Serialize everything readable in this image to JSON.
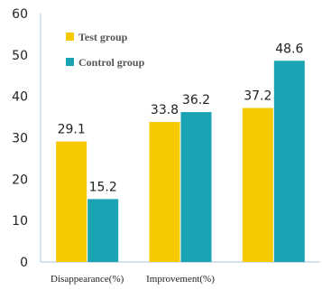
{
  "chart_data": {
    "type": "bar",
    "title": "",
    "xlabel": "",
    "ylabel": "",
    "categories": [
      "Disappearance(%)",
      "Improvement(%)",
      ""
    ],
    "series": [
      {
        "name": "Test group",
        "values": [
          29.1,
          33.8,
          37.2
        ],
        "color": "#f5c800"
      },
      {
        "name": "Control group",
        "values": [
          15.2,
          36.2,
          48.6
        ],
        "color": "#1aa3b3"
      }
    ],
    "ylim": [
      0,
      60
    ],
    "yticks": [
      "0",
      "10",
      "20",
      "30",
      "40",
      "50",
      "60"
    ],
    "data_labels": [
      [
        "29.1",
        "33.8",
        "37.2"
      ],
      [
        "15.2",
        "36.2",
        "48.6"
      ]
    ],
    "grid": false,
    "legend": "top-left"
  }
}
